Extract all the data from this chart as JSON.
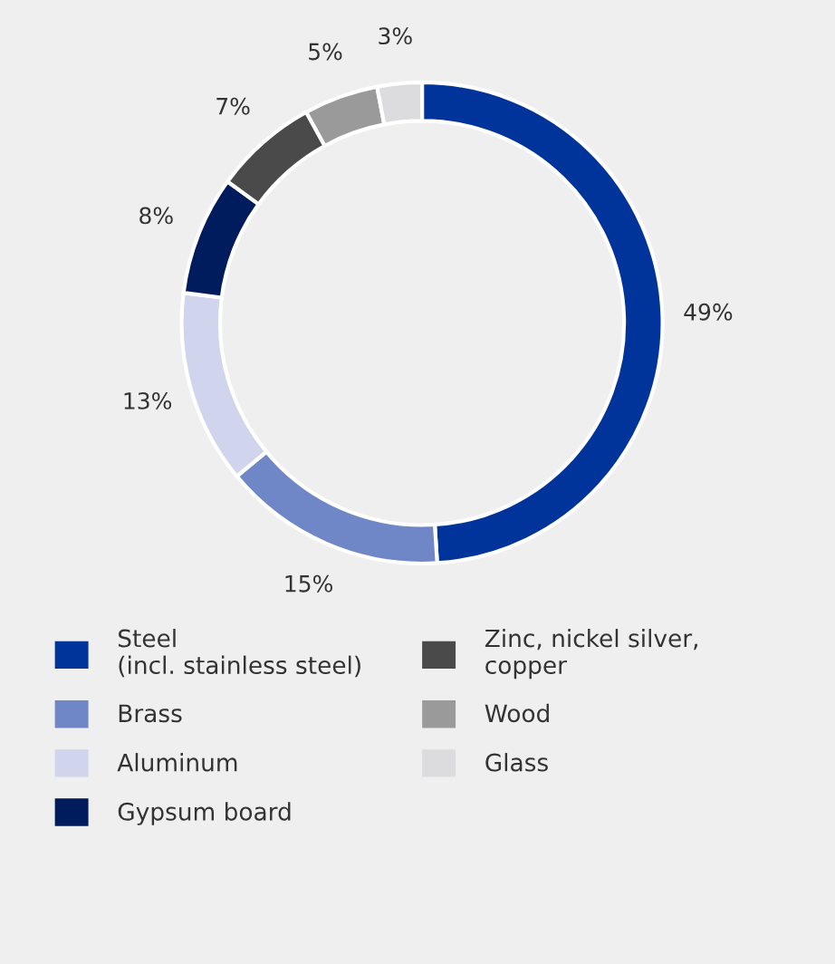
{
  "chart_data": {
    "type": "donut",
    "categories": [
      "Steel\n(incl. stainless steel)",
      "Brass",
      "Aluminum",
      "Gypsum board",
      "Zinc, nickel silver,\ncopper",
      "Wood",
      "Glass"
    ],
    "values": [
      49,
      15,
      13,
      8,
      7,
      5,
      3
    ],
    "colors": [
      "#00349a",
      "#6f87c6",
      "#d0d4ec",
      "#001c5c",
      "#4a4a4a",
      "#9a9a9a",
      "#dcdcde"
    ],
    "value_labels": [
      "49%",
      "15%",
      "13%",
      "8%",
      "7%",
      "5%",
      "3%"
    ],
    "legend": "bottom"
  }
}
